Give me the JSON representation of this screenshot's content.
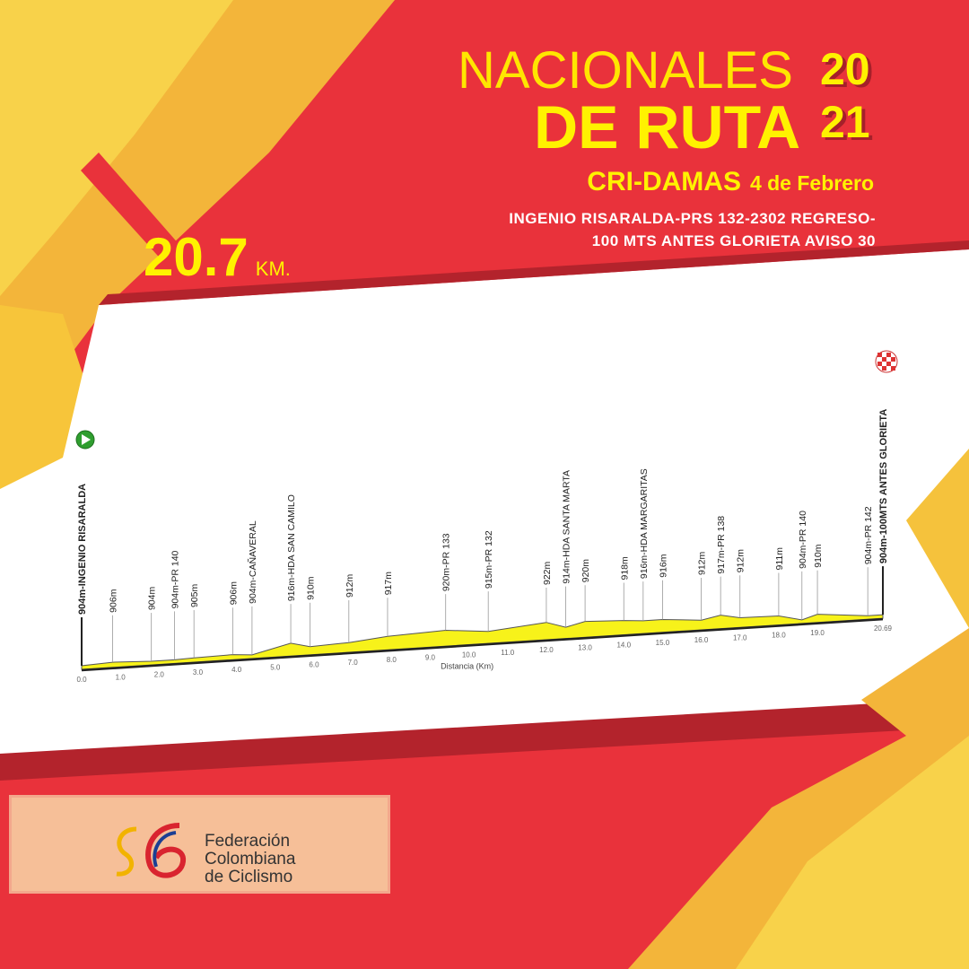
{
  "header": {
    "title_line1": "NACIONALES",
    "title_line2": "DE RUTA",
    "year_top": "20",
    "year_bottom": "21",
    "stage": "CRI-DAMAS",
    "date": "4 de Febrero",
    "route_line1": "INGENIO RISARALDA-PRS 132-2302 REGRESO-",
    "route_line2": "100 MTS ANTES GLORIETA AVISO 30",
    "distance": "20.7",
    "distance_unit": "KM."
  },
  "colors": {
    "red": "#e9323b",
    "yellow": "#fff200",
    "profile_fill": "#f7f21a",
    "white_band": "#ffffff"
  },
  "footer": {
    "logo_lines": [
      "Federación",
      "Colombiana",
      "de Ciclismo"
    ]
  },
  "chart_data": {
    "type": "area",
    "xlabel": "Distancia (Km)",
    "xlim": [
      0,
      20.69
    ],
    "x_ticks": [
      "0.0",
      "1.0",
      "2.0",
      "3.0",
      "4.0",
      "5.0",
      "6.0",
      "7.0",
      "8.0",
      "9.0",
      "10.0",
      "11.0",
      "12.0",
      "13.0",
      "14.0",
      "15.0",
      "16.0",
      "17.0",
      "18.0",
      "19.0",
      "20.69"
    ],
    "start_icon": "play-icon",
    "finish_icon": "checkered-flag-icon",
    "points": [
      {
        "km": 0,
        "elev": 904,
        "label": "904m-INGENIO RISARALDA",
        "bold": true
      },
      {
        "km": 0.8,
        "elev": 906,
        "label": "906m"
      },
      {
        "km": 1.8,
        "elev": 904,
        "label": "904m"
      },
      {
        "km": 2.4,
        "elev": 904,
        "label": "904m-PR 140"
      },
      {
        "km": 2.9,
        "elev": 905,
        "label": "905m"
      },
      {
        "km": 3.9,
        "elev": 906,
        "label": "906m"
      },
      {
        "km": 4.4,
        "elev": 904,
        "label": "904m-CAÑAVERAL"
      },
      {
        "km": 5.4,
        "elev": 916,
        "label": "916m-HDA SAN CAMILO"
      },
      {
        "km": 5.9,
        "elev": 910,
        "label": "910m"
      },
      {
        "km": 6.9,
        "elev": 912,
        "label": "912m"
      },
      {
        "km": 7.9,
        "elev": 917,
        "label": "917m"
      },
      {
        "km": 9.4,
        "elev": 920,
        "label": "920m-PR 133"
      },
      {
        "km": 10.5,
        "elev": 915,
        "label": "915m-PR 132"
      },
      {
        "km": 12.0,
        "elev": 922,
        "label": "922m"
      },
      {
        "km": 12.5,
        "elev": 914,
        "label": "914m-HDA SANTA MARTA"
      },
      {
        "km": 13.0,
        "elev": 920,
        "label": "920m"
      },
      {
        "km": 14.0,
        "elev": 918,
        "label": "918m"
      },
      {
        "km": 14.5,
        "elev": 916,
        "label": "916m-HDA MARGARITAS"
      },
      {
        "km": 15.0,
        "elev": 916,
        "label": "916m"
      },
      {
        "km": 16.0,
        "elev": 912,
        "label": "912m"
      },
      {
        "km": 16.5,
        "elev": 917,
        "label": "917m-PR 138"
      },
      {
        "km": 17.0,
        "elev": 912,
        "label": "912m"
      },
      {
        "km": 18.0,
        "elev": 911,
        "label": "911m"
      },
      {
        "km": 18.6,
        "elev": 904,
        "label": "904m-PR 140"
      },
      {
        "km": 19.0,
        "elev": 910,
        "label": "910m"
      },
      {
        "km": 20.3,
        "elev": 904,
        "label": "904m-PR 142"
      },
      {
        "km": 20.69,
        "elev": 904,
        "label": "904m-100MTS ANTES GLORIETA",
        "bold": true
      }
    ]
  }
}
